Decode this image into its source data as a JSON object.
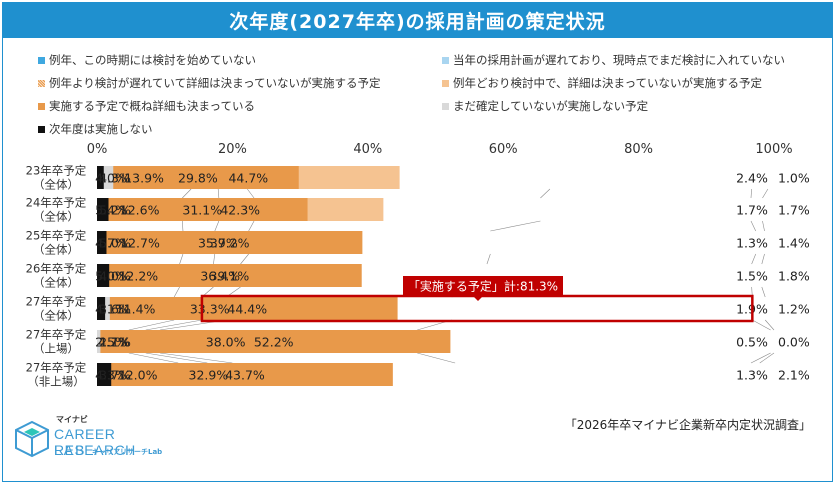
{
  "title": "次年度(2027年卒)の採用計画の策定状況",
  "source": "「2026年卒マイナビ企業新卒内定状況調査」",
  "logo": {
    "small": "マイナビ",
    "main": "CAREER RESEARCH",
    "lab": "LAB",
    "kana": "キャリアリサーチLab"
  },
  "colors": {
    "title_bg": "#1f90cf",
    "series": [
      "#3fa8e0",
      "#a9d5f0",
      "#f2c9a1",
      "#f5c391",
      "#e8994a",
      "#d9d9d9",
      "#111111"
    ],
    "highlight": "#c00000"
  },
  "chart_data": {
    "type": "bar",
    "orientation": "horizontal",
    "stacked": true,
    "percent": true,
    "xlim": [
      0,
      100
    ],
    "xticks": [
      "0%",
      "20%",
      "40%",
      "60%",
      "80%",
      "100%"
    ],
    "categories": [
      [
        "23年卒予定",
        "（全体）"
      ],
      [
        "24年卒予定",
        "（全体）"
      ],
      [
        "25年卒予定",
        "（全体）"
      ],
      [
        "26年卒予定",
        "（全体）"
      ],
      [
        "27年卒予定",
        "（全体）"
      ],
      [
        "27年卒予定",
        "（上場）"
      ],
      [
        "27年卒予定",
        "（非上場）"
      ]
    ],
    "series": [
      {
        "name": "例年、この時期には検討を始めていない",
        "values": [
          13.9,
          12.6,
          12.7,
          12.2,
          11.4,
          4.7,
          12.0
        ]
      },
      {
        "name": "当年の採用計画が遅れており、現時点でまだ検討に入れていない",
        "values": [
          4.0,
          5.4,
          4.7,
          5.0,
          4.1,
          2.5,
          4.3
        ]
      },
      {
        "name": "例年より検討が遅れていて詳細は決まっていないが実施する予定",
        "values": [
          4.3,
          5.2,
          5.0,
          4.0,
          3.6,
          2.1,
          3.7
        ]
      },
      {
        "name": "例年どおり検討中で、詳細は決まっていないが実施する予定",
        "values": [
          44.7,
          42.3,
          35.7,
          36.4,
          33.3,
          38.0,
          32.9
        ]
      },
      {
        "name": "実施する予定で概ね詳細も決まっている",
        "values": [
          29.8,
          31.1,
          39.2,
          39.1,
          44.4,
          52.2,
          43.7
        ]
      },
      {
        "name": "まだ確定していないが実施しない予定",
        "values": [
          2.4,
          1.7,
          1.3,
          1.5,
          1.9,
          0.5,
          1.3
        ]
      },
      {
        "name": "次年度は実施しない",
        "values": [
          1.0,
          1.7,
          1.4,
          1.8,
          1.2,
          0.0,
          2.1
        ]
      }
    ],
    "value_labels": [
      [
        "13.9%",
        "4.0%",
        "4.3%",
        "44.7%",
        "29.8%",
        "2.4%",
        "1.0%"
      ],
      [
        "12.6%",
        "5.4%",
        "5.2%",
        "42.3%",
        "31.1%",
        "1.7%",
        "1.7%"
      ],
      [
        "12.7%",
        "4.7%",
        "5.0%",
        "35.7%",
        "39.2%",
        "1.3%",
        "1.4%"
      ],
      [
        "12.2%",
        "5.0%",
        "4.0%",
        "36.4%",
        "39.1%",
        "1.5%",
        "1.8%"
      ],
      [
        "11.4%",
        "4.1%",
        "3.6%",
        "33.3%",
        "44.4%",
        "1.9%",
        "1.2%"
      ],
      [
        "4.7%",
        "2.5%",
        "2.1%",
        "38.0%",
        "52.2%",
        "0.5%",
        "0.0%"
      ],
      [
        "12.0%",
        "4.3%",
        "3.7%",
        "32.9%",
        "43.7%",
        "1.3%",
        "2.1%"
      ]
    ],
    "annotation": {
      "text": "「実施する予定」計:81.3%",
      "row": 4
    }
  }
}
